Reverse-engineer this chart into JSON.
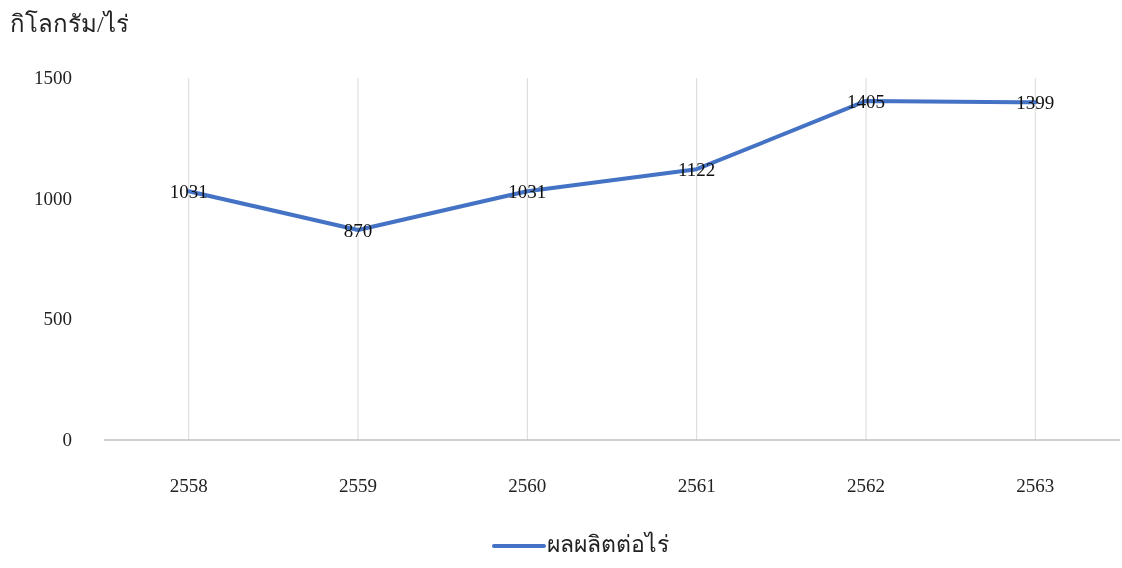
{
  "chart_data": {
    "type": "line",
    "ylabel": "กิโลกรัม/ไร่",
    "categories": [
      "2558",
      "2559",
      "2560",
      "2561",
      "2562",
      "2563"
    ],
    "series": [
      {
        "name": "ผลผลิตต่อไร่",
        "color": "#4472c4",
        "values": [
          1031,
          870,
          1031,
          1122,
          1405,
          1399
        ]
      }
    ],
    "ylim": [
      0,
      1500
    ],
    "yticks": [
      0,
      500,
      1000,
      1500
    ],
    "grid": "x",
    "legend": "bottom",
    "data_labels": true,
    "marker": "none",
    "line_style": "solid"
  }
}
